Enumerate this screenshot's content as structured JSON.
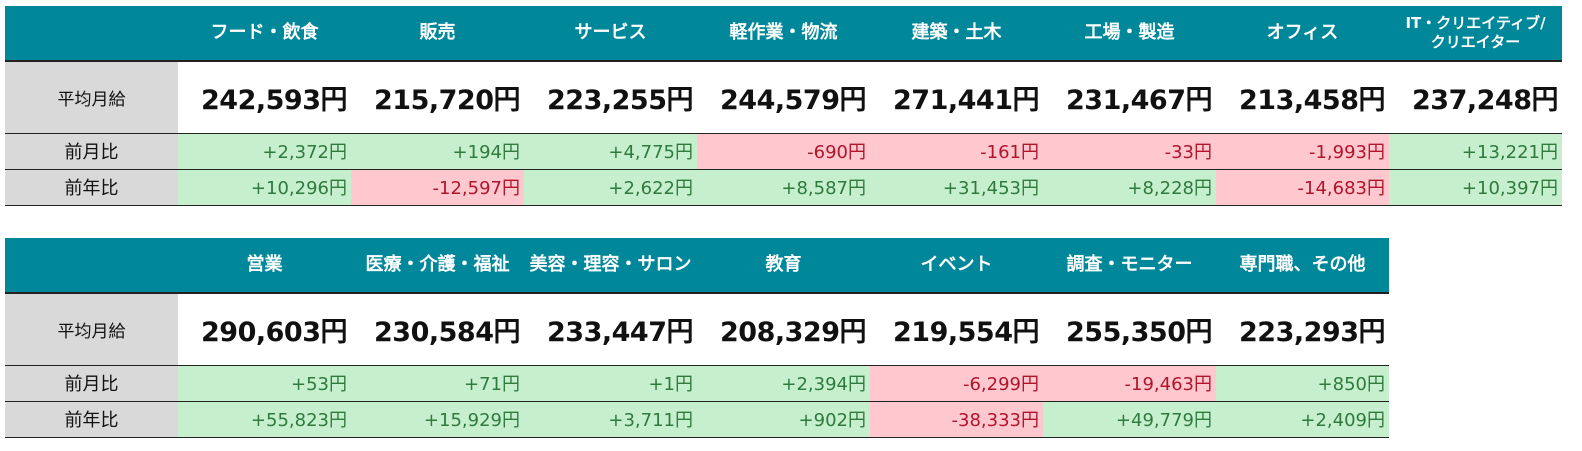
{
  "colors": {
    "header_bg": "#00879a",
    "label_bg": "#d9d9d9",
    "positive_bg": "#c6efce",
    "positive_text": "#2f7a3d",
    "negative_bg": "#ffc7ce",
    "negative_text": "#b0152b"
  },
  "row_labels": {
    "average": "平均月給",
    "month_over_month": "前月比",
    "year_over_year": "前年比"
  },
  "table1": {
    "columns": [
      {
        "category": "フード・飲食",
        "average": "242,593円",
        "mom": "+2,372円",
        "mom_sign": "pos",
        "yoy": "+10,296円",
        "yoy_sign": "pos"
      },
      {
        "category": "販売",
        "average": "215,720円",
        "mom": "+194円",
        "mom_sign": "pos",
        "yoy": "-12,597円",
        "yoy_sign": "neg"
      },
      {
        "category": "サービス",
        "average": "223,255円",
        "mom": "+4,775円",
        "mom_sign": "pos",
        "yoy": "+2,622円",
        "yoy_sign": "pos"
      },
      {
        "category": "軽作業・物流",
        "average": "244,579円",
        "mom": "-690円",
        "mom_sign": "neg",
        "yoy": "+8,587円",
        "yoy_sign": "pos"
      },
      {
        "category": "建築・土木",
        "average": "271,441円",
        "mom": "-161円",
        "mom_sign": "neg",
        "yoy": "+31,453円",
        "yoy_sign": "pos"
      },
      {
        "category": "工場・製造",
        "average": "231,467円",
        "mom": "-33円",
        "mom_sign": "neg",
        "yoy": "+8,228円",
        "yoy_sign": "pos"
      },
      {
        "category": "オフィス",
        "average": "213,458円",
        "mom": "-1,993円",
        "mom_sign": "neg",
        "yoy": "-14,683円",
        "yoy_sign": "neg"
      },
      {
        "category_line1": "IT・クリエイティブ/",
        "category_line2": "クリエイター",
        "average": "237,248円",
        "mom": "+13,221円",
        "mom_sign": "pos",
        "yoy": "+10,397円",
        "yoy_sign": "pos"
      }
    ]
  },
  "table2": {
    "columns": [
      {
        "category": "営業",
        "average": "290,603円",
        "mom": "+53円",
        "mom_sign": "pos",
        "yoy": "+55,823円",
        "yoy_sign": "pos"
      },
      {
        "category": "医療・介護・福祉",
        "average": "230,584円",
        "mom": "+71円",
        "mom_sign": "pos",
        "yoy": "+15,929円",
        "yoy_sign": "pos"
      },
      {
        "category": "美容・理容・サロン",
        "average": "233,447円",
        "mom": "+1円",
        "mom_sign": "pos",
        "yoy": "+3,711円",
        "yoy_sign": "pos"
      },
      {
        "category": "教育",
        "average": "208,329円",
        "mom": "+2,394円",
        "mom_sign": "pos",
        "yoy": "+902円",
        "yoy_sign": "pos"
      },
      {
        "category": "イベント",
        "average": "219,554円",
        "mom": "-6,299円",
        "mom_sign": "neg",
        "yoy": "-38,333円",
        "yoy_sign": "neg"
      },
      {
        "category": "調査・モニター",
        "average": "255,350円",
        "mom": "-19,463円",
        "mom_sign": "neg",
        "yoy": "+49,779円",
        "yoy_sign": "pos"
      },
      {
        "category": "専門職、その他",
        "average": "223,293円",
        "mom": "+850円",
        "mom_sign": "pos",
        "yoy": "+2,409円",
        "yoy_sign": "pos"
      }
    ]
  }
}
